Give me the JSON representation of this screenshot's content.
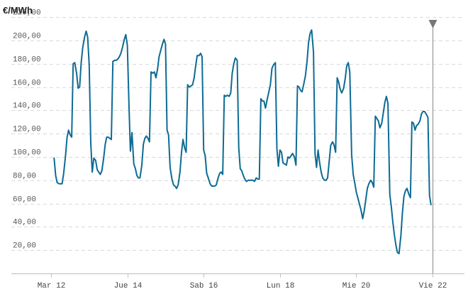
{
  "chart_data": {
    "type": "line",
    "ylabel": "€/MWh",
    "ylim": [
      0,
      225
    ],
    "yticks": [
      20,
      40,
      60,
      80,
      100,
      120,
      140,
      160,
      180,
      200,
      220
    ],
    "ytick_labels": [
      "20,00",
      "40,00",
      "60,00",
      "80,00",
      "100,00",
      "120,00",
      "140,00",
      "160,00",
      "180,00",
      "200,00",
      "220,00"
    ],
    "xlim": [
      -0.2,
      10.85
    ],
    "xticks": [
      0,
      2,
      4,
      6,
      8,
      10
    ],
    "xtick_labels": [
      "Mar 12",
      "Jue 14",
      "Sab 16",
      "Lun 18",
      "Mie 20",
      "Vie 22"
    ],
    "grid": true,
    "cursor_x": 10,
    "colors": {
      "series": "#0d6b94",
      "grid": "#d9d9d9",
      "cursor": "#888888"
    },
    "series": [
      {
        "values": [
          [
            0.08,
            99
          ],
          [
            0.12,
            84
          ],
          [
            0.16,
            78
          ],
          [
            0.21,
            77
          ],
          [
            0.29,
            77
          ],
          [
            0.33,
            86
          ],
          [
            0.38,
            101
          ],
          [
            0.42,
            117
          ],
          [
            0.46,
            123
          ],
          [
            0.5,
            119
          ],
          [
            0.54,
            117
          ],
          [
            0.58,
            180
          ],
          [
            0.62,
            181
          ],
          [
            0.67,
            172
          ],
          [
            0.71,
            159
          ],
          [
            0.75,
            160
          ],
          [
            0.79,
            181
          ],
          [
            0.83,
            194
          ],
          [
            0.88,
            203
          ],
          [
            0.92,
            208
          ],
          [
            0.96,
            203
          ],
          [
            1.0,
            179
          ],
          [
            1.04,
            112
          ],
          [
            1.08,
            87
          ],
          [
            1.12,
            99
          ],
          [
            1.17,
            97
          ],
          [
            1.21,
            89
          ],
          [
            1.25,
            87
          ],
          [
            1.29,
            85
          ],
          [
            1.33,
            88
          ],
          [
            1.38,
            99
          ],
          [
            1.42,
            111
          ],
          [
            1.46,
            117
          ],
          [
            1.5,
            117
          ],
          [
            1.54,
            116
          ],
          [
            1.58,
            115
          ],
          [
            1.62,
            182
          ],
          [
            1.67,
            183
          ],
          [
            1.71,
            183
          ],
          [
            1.75,
            184
          ],
          [
            1.79,
            186
          ],
          [
            1.83,
            189
          ],
          [
            1.88,
            195
          ],
          [
            1.92,
            201
          ],
          [
            1.96,
            205
          ],
          [
            2.0,
            196
          ],
          [
            2.04,
            146
          ],
          [
            2.08,
            105
          ],
          [
            2.12,
            121
          ],
          [
            2.17,
            94
          ],
          [
            2.21,
            90
          ],
          [
            2.25,
            84
          ],
          [
            2.29,
            82
          ],
          [
            2.33,
            82
          ],
          [
            2.38,
            93
          ],
          [
            2.42,
            111
          ],
          [
            2.46,
            116
          ],
          [
            2.5,
            118
          ],
          [
            2.54,
            116
          ],
          [
            2.58,
            113
          ],
          [
            2.62,
            173
          ],
          [
            2.67,
            172
          ],
          [
            2.71,
            173
          ],
          [
            2.75,
            168
          ],
          [
            2.79,
            175
          ],
          [
            2.83,
            186
          ],
          [
            2.88,
            192
          ],
          [
            2.92,
            197
          ],
          [
            2.96,
            201
          ],
          [
            3.0,
            197
          ],
          [
            3.04,
            123
          ],
          [
            3.08,
            119
          ],
          [
            3.12,
            91
          ],
          [
            3.17,
            81
          ],
          [
            3.21,
            76
          ],
          [
            3.25,
            75
          ],
          [
            3.29,
            73
          ],
          [
            3.33,
            76
          ],
          [
            3.38,
            87
          ],
          [
            3.42,
            104
          ],
          [
            3.46,
            115
          ],
          [
            3.5,
            108
          ],
          [
            3.54,
            104
          ],
          [
            3.58,
            162
          ],
          [
            3.62,
            160
          ],
          [
            3.67,
            161
          ],
          [
            3.71,
            162
          ],
          [
            3.75,
            168
          ],
          [
            3.79,
            178
          ],
          [
            3.83,
            187
          ],
          [
            3.88,
            187
          ],
          [
            3.92,
            189
          ],
          [
            3.96,
            186
          ],
          [
            4.0,
            106
          ],
          [
            4.04,
            101
          ],
          [
            4.08,
            86
          ],
          [
            4.12,
            82
          ],
          [
            4.17,
            77
          ],
          [
            4.21,
            75
          ],
          [
            4.25,
            75
          ],
          [
            4.29,
            75
          ],
          [
            4.33,
            76
          ],
          [
            4.38,
            82
          ],
          [
            4.42,
            86
          ],
          [
            4.46,
            87
          ],
          [
            4.5,
            85
          ],
          [
            4.54,
            153
          ],
          [
            4.58,
            152
          ],
          [
            4.62,
            153
          ],
          [
            4.67,
            152
          ],
          [
            4.71,
            155
          ],
          [
            4.75,
            172
          ],
          [
            4.79,
            180
          ],
          [
            4.83,
            185
          ],
          [
            4.88,
            183
          ],
          [
            4.92,
            108
          ],
          [
            4.96,
            90
          ],
          [
            5.0,
            88
          ],
          [
            5.04,
            84
          ],
          [
            5.08,
            81
          ],
          [
            5.12,
            79
          ],
          [
            5.17,
            80
          ],
          [
            5.21,
            80
          ],
          [
            5.25,
            80
          ],
          [
            5.29,
            80
          ],
          [
            5.33,
            79
          ],
          [
            5.38,
            82
          ],
          [
            5.42,
            81
          ],
          [
            5.46,
            81
          ],
          [
            5.5,
            150
          ],
          [
            5.54,
            148
          ],
          [
            5.58,
            148
          ],
          [
            5.62,
            142
          ],
          [
            5.67,
            150
          ],
          [
            5.71,
            156
          ],
          [
            5.75,
            162
          ],
          [
            5.79,
            176
          ],
          [
            5.83,
            179
          ],
          [
            5.88,
            181
          ],
          [
            5.92,
            107
          ],
          [
            5.96,
            92
          ],
          [
            6.0,
            106
          ],
          [
            6.04,
            104
          ],
          [
            6.08,
            95
          ],
          [
            6.12,
            94
          ],
          [
            6.17,
            93
          ],
          [
            6.21,
            100
          ],
          [
            6.25,
            99
          ],
          [
            6.29,
            101
          ],
          [
            6.33,
            103
          ],
          [
            6.38,
            100
          ],
          [
            6.42,
            93
          ],
          [
            6.46,
            161
          ],
          [
            6.5,
            160
          ],
          [
            6.54,
            157
          ],
          [
            6.58,
            156
          ],
          [
            6.62,
            162
          ],
          [
            6.67,
            170
          ],
          [
            6.71,
            182
          ],
          [
            6.75,
            198
          ],
          [
            6.79,
            206
          ],
          [
            6.83,
            209
          ],
          [
            6.88,
            190
          ],
          [
            6.92,
            103
          ],
          [
            6.96,
            91
          ],
          [
            7.0,
            106
          ],
          [
            7.04,
            95
          ],
          [
            7.08,
            87
          ],
          [
            7.12,
            82
          ],
          [
            7.17,
            80
          ],
          [
            7.21,
            80
          ],
          [
            7.25,
            82
          ],
          [
            7.29,
            96
          ],
          [
            7.33,
            110
          ],
          [
            7.38,
            113
          ],
          [
            7.42,
            110
          ],
          [
            7.46,
            104
          ],
          [
            7.5,
            168
          ],
          [
            7.54,
            164
          ],
          [
            7.58,
            158
          ],
          [
            7.62,
            155
          ],
          [
            7.67,
            159
          ],
          [
            7.71,
            167
          ],
          [
            7.75,
            178
          ],
          [
            7.79,
            181
          ],
          [
            7.83,
            173
          ],
          [
            7.88,
            102
          ],
          [
            7.92,
            85
          ],
          [
            7.96,
            78
          ],
          [
            8.0,
            70
          ],
          [
            8.04,
            65
          ],
          [
            8.08,
            60
          ],
          [
            8.12,
            55
          ],
          [
            8.17,
            47
          ],
          [
            8.21,
            54
          ],
          [
            8.25,
            63
          ],
          [
            8.29,
            73
          ],
          [
            8.33,
            77
          ],
          [
            8.38,
            80
          ],
          [
            8.42,
            78
          ],
          [
            8.46,
            74
          ],
          [
            8.5,
            135
          ],
          [
            8.54,
            133
          ],
          [
            8.58,
            131
          ],
          [
            8.62,
            125
          ],
          [
            8.67,
            129
          ],
          [
            8.71,
            138
          ],
          [
            8.75,
            147
          ],
          [
            8.79,
            152
          ],
          [
            8.83,
            146
          ],
          [
            8.88,
            68
          ],
          [
            8.92,
            57
          ],
          [
            8.96,
            44
          ],
          [
            9.0,
            33
          ],
          [
            9.04,
            24
          ],
          [
            9.08,
            18
          ],
          [
            9.12,
            17
          ],
          [
            9.17,
            32
          ],
          [
            9.21,
            52
          ],
          [
            9.25,
            66
          ],
          [
            9.29,
            71
          ],
          [
            9.33,
            73
          ],
          [
            9.38,
            68
          ],
          [
            9.42,
            65
          ],
          [
            9.46,
            130
          ],
          [
            9.5,
            129
          ],
          [
            9.54,
            123
          ],
          [
            9.58,
            127
          ],
          [
            9.62,
            128
          ],
          [
            9.67,
            131
          ],
          [
            9.71,
            137
          ],
          [
            9.75,
            139
          ],
          [
            9.79,
            139
          ],
          [
            9.83,
            137
          ],
          [
            9.88,
            134
          ],
          [
            9.92,
            67
          ],
          [
            9.96,
            59
          ]
        ]
      }
    ]
  }
}
